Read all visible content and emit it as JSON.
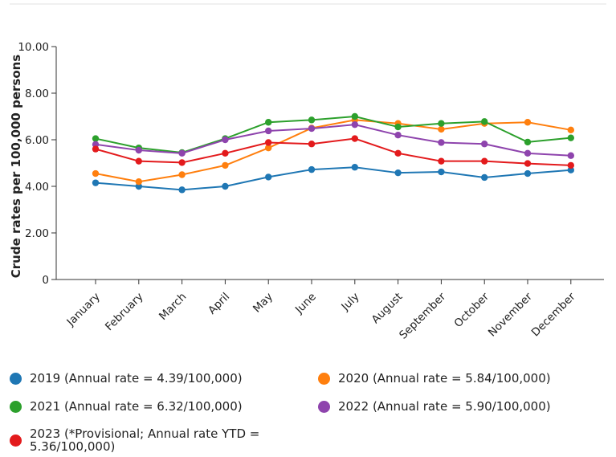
{
  "chart_data": {
    "type": "line",
    "ylabel": "Crude rates per 100,000 persons",
    "xlabel": "",
    "ylim": [
      0,
      10
    ],
    "y_ticks": [
      "0",
      "2.00",
      "4.00",
      "6.00",
      "8.00",
      "10.00"
    ],
    "grid": false,
    "legend_position": "bottom",
    "categories": [
      "January",
      "February",
      "March",
      "April",
      "May",
      "June",
      "July",
      "August",
      "September",
      "October",
      "November",
      "December"
    ],
    "series": [
      {
        "name": "2019 (Annual rate = 4.39/100,000)",
        "color": "#1f77b4",
        "values": [
          4.15,
          4.0,
          3.85,
          4.0,
          4.4,
          4.72,
          4.82,
          4.58,
          4.62,
          4.38,
          4.55,
          4.7
        ]
      },
      {
        "name": "2020 (Annual rate = 5.84/100,000)",
        "color": "#ff7f0e",
        "values": [
          4.55,
          4.2,
          4.5,
          4.9,
          5.65,
          6.5,
          6.85,
          6.7,
          6.45,
          6.7,
          6.75,
          6.42
        ]
      },
      {
        "name": "2021 (Annual rate = 6.32/100,000)",
        "color": "#2ca02c",
        "values": [
          6.05,
          5.65,
          5.45,
          6.05,
          6.75,
          6.85,
          7.0,
          6.55,
          6.7,
          6.78,
          5.9,
          6.08
        ]
      },
      {
        "name": "2022 (Annual rate = 5.90/100,000)",
        "color": "#8e44ad",
        "values": [
          5.8,
          5.55,
          5.42,
          6.0,
          6.38,
          6.48,
          6.65,
          6.2,
          5.88,
          5.82,
          5.42,
          5.32
        ]
      },
      {
        "name": "2023 (*Provisional; Annual rate YTD =\n5.36/100,000)",
        "color": "#e31a1c",
        "values": [
          5.6,
          5.08,
          5.02,
          5.42,
          5.88,
          5.82,
          6.05,
          5.42,
          5.08,
          5.08,
          4.98,
          4.9
        ]
      }
    ]
  }
}
